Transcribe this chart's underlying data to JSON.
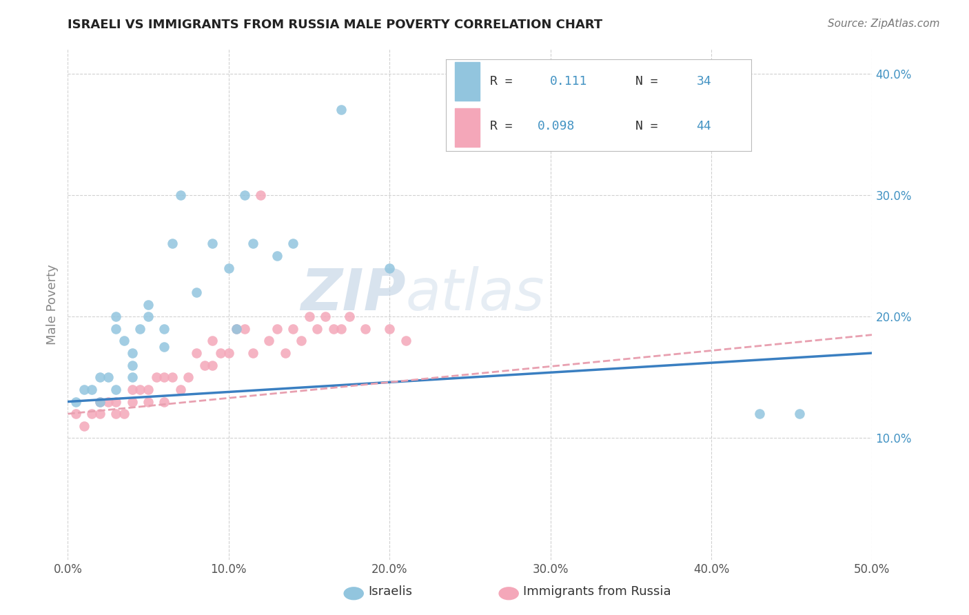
{
  "title": "ISRAELI VS IMMIGRANTS FROM RUSSIA MALE POVERTY CORRELATION CHART",
  "source_text": "Source: ZipAtlas.com",
  "ylabel": "Male Poverty",
  "xlim": [
    0.0,
    0.5
  ],
  "ylim": [
    0.0,
    0.42
  ],
  "xtick_vals": [
    0.0,
    0.1,
    0.2,
    0.3,
    0.4,
    0.5
  ],
  "ytick_vals": [
    0.1,
    0.2,
    0.3,
    0.4
  ],
  "color_israeli": "#92c5de",
  "color_russia": "#f4a7b9",
  "color_line_israeli": "#3a7fc1",
  "color_line_russia": "#e8a0b0",
  "color_ytick": "#4393c3",
  "israelis_x": [
    0.005,
    0.01,
    0.015,
    0.02,
    0.02,
    0.025,
    0.03,
    0.03,
    0.03,
    0.035,
    0.04,
    0.04,
    0.04,
    0.045,
    0.05,
    0.05,
    0.06,
    0.06,
    0.065,
    0.07,
    0.08,
    0.09,
    0.1,
    0.105,
    0.11,
    0.115,
    0.13,
    0.14,
    0.17,
    0.2,
    0.43,
    0.455
  ],
  "israelis_y": [
    0.13,
    0.14,
    0.14,
    0.13,
    0.15,
    0.15,
    0.14,
    0.19,
    0.2,
    0.18,
    0.15,
    0.16,
    0.17,
    0.19,
    0.2,
    0.21,
    0.175,
    0.19,
    0.26,
    0.3,
    0.22,
    0.26,
    0.24,
    0.19,
    0.3,
    0.26,
    0.25,
    0.26,
    0.37,
    0.24,
    0.12,
    0.12
  ],
  "russia_x": [
    0.005,
    0.01,
    0.015,
    0.02,
    0.02,
    0.025,
    0.03,
    0.03,
    0.035,
    0.04,
    0.04,
    0.045,
    0.05,
    0.05,
    0.055,
    0.06,
    0.06,
    0.065,
    0.07,
    0.075,
    0.08,
    0.085,
    0.09,
    0.09,
    0.095,
    0.1,
    0.105,
    0.11,
    0.115,
    0.12,
    0.125,
    0.13,
    0.135,
    0.14,
    0.145,
    0.15,
    0.155,
    0.16,
    0.165,
    0.17,
    0.175,
    0.185,
    0.2,
    0.21
  ],
  "russia_y": [
    0.12,
    0.11,
    0.12,
    0.13,
    0.12,
    0.13,
    0.12,
    0.13,
    0.12,
    0.13,
    0.14,
    0.14,
    0.13,
    0.14,
    0.15,
    0.15,
    0.13,
    0.15,
    0.14,
    0.15,
    0.17,
    0.16,
    0.16,
    0.18,
    0.17,
    0.17,
    0.19,
    0.19,
    0.17,
    0.3,
    0.18,
    0.19,
    0.17,
    0.19,
    0.18,
    0.2,
    0.19,
    0.2,
    0.19,
    0.19,
    0.2,
    0.19,
    0.19,
    0.18
  ],
  "grid_color": "#cccccc",
  "background_color": "#ffffff",
  "title_color": "#222222",
  "axis_label_color": "#888888",
  "watermark_zip": "ZIP",
  "watermark_atlas": "atlas"
}
